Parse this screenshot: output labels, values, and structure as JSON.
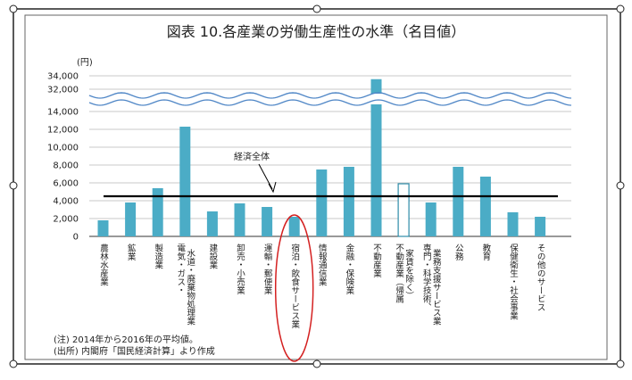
{
  "chart_data": {
    "type": "bar",
    "title": "図表 10.各産業の労働生産性の水準（名目値）",
    "unit": "(円)",
    "y_tick_labels": [
      "0",
      "2,000",
      "4,000",
      "6,000",
      "8,000",
      "10,000",
      "12,000",
      "14,000",
      "32,000",
      "34,000"
    ],
    "axis_break": "14,000–32,000",
    "categories": [
      "農林水産業",
      "鉱業",
      "製造業",
      "電気・ガス・水道・廃棄物処理業",
      "建設業",
      "卸売・小売業",
      "運輸・郵便業",
      "宿泊・飲食サービス業",
      "情報通信業",
      "金融・保険業",
      "不動産業",
      "不動産業（帰属家賃を除く）",
      "専門・科学技術、業務支援サービス業",
      "公務",
      "教育",
      "保健衛生・社会事業",
      "その他のサービス"
    ],
    "values": [
      1800,
      3800,
      5400,
      12300,
      2800,
      3700,
      3300,
      2200,
      7500,
      7800,
      33500,
      5900,
      3800,
      7800,
      6700,
      2700,
      2200
    ],
    "hollow_bar_index": 11,
    "highlighted_index": 7,
    "reference_line": {
      "label": "経済全体",
      "value": 4500
    },
    "colors": {
      "bar": "#4bacc6",
      "bar_edge": "#2e8ba8",
      "reference_line": "#000000",
      "highlight": "#d42020",
      "break_wave": "#4f86c6"
    }
  },
  "notes": [
    "(注) 2014年から2016年の平均値。",
    "(出所) 内閣府「国民経済計算」より作成"
  ]
}
